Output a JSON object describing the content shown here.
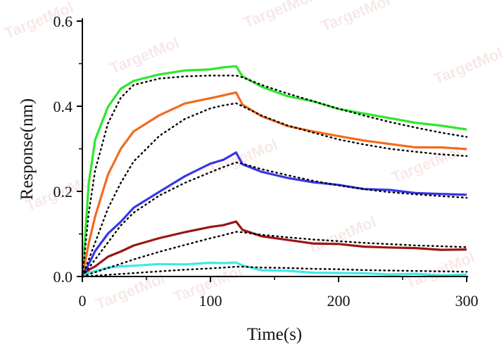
{
  "watermark_text": "TargetMol",
  "chart_data": {
    "type": "line",
    "title": "",
    "xlabel": "Time(s)",
    "ylabel": "Response(nm)",
    "xlim": [
      0,
      300
    ],
    "ylim": [
      0,
      0.6
    ],
    "x_ticks": [
      0,
      100,
      200,
      300
    ],
    "y_ticks": [
      0.0,
      0.2,
      0.4,
      0.6
    ],
    "x_tick_labels": [
      "0",
      "100",
      "200",
      "300"
    ],
    "y_tick_labels": [
      "0.0",
      "0.2",
      "0.4",
      "0.6"
    ],
    "grid": false,
    "legend": "none",
    "x": [
      0,
      5,
      10,
      20,
      30,
      40,
      60,
      80,
      100,
      110,
      120,
      125,
      140,
      160,
      180,
      200,
      220,
      240,
      260,
      280,
      300
    ],
    "series": [
      {
        "color": "#2ee62e",
        "values": [
          0.0,
          0.22,
          0.32,
          0.4,
          0.44,
          0.46,
          0.475,
          0.483,
          0.488,
          0.49,
          0.495,
          0.47,
          0.445,
          0.425,
          0.41,
          0.395,
          0.382,
          0.372,
          0.362,
          0.353,
          0.347
        ],
        "fit": [
          0.0,
          0.15,
          0.25,
          0.36,
          0.42,
          0.45,
          0.465,
          0.47,
          0.472,
          0.472,
          0.472,
          0.468,
          0.45,
          0.43,
          0.412,
          0.394,
          0.378,
          0.363,
          0.35,
          0.338,
          0.328
        ]
      },
      {
        "color": "#f26a1e",
        "values": [
          0.0,
          0.08,
          0.14,
          0.24,
          0.3,
          0.34,
          0.38,
          0.405,
          0.42,
          0.425,
          0.432,
          0.405,
          0.375,
          0.355,
          0.34,
          0.33,
          0.32,
          0.31,
          0.305,
          0.302,
          0.3
        ],
        "fit": [
          0.0,
          0.04,
          0.08,
          0.16,
          0.22,
          0.27,
          0.33,
          0.37,
          0.395,
          0.402,
          0.407,
          0.4,
          0.378,
          0.355,
          0.338,
          0.322,
          0.31,
          0.3,
          0.293,
          0.287,
          0.283
        ]
      },
      {
        "color": "#3535e8",
        "values": [
          0.0,
          0.03,
          0.06,
          0.1,
          0.13,
          0.16,
          0.2,
          0.235,
          0.265,
          0.275,
          0.29,
          0.265,
          0.245,
          0.232,
          0.222,
          0.214,
          0.207,
          0.202,
          0.197,
          0.194,
          0.191
        ],
        "fit": [
          0.0,
          0.02,
          0.04,
          0.08,
          0.12,
          0.15,
          0.19,
          0.22,
          0.245,
          0.257,
          0.268,
          0.265,
          0.252,
          0.238,
          0.225,
          0.214,
          0.205,
          0.198,
          0.193,
          0.189,
          0.185
        ]
      },
      {
        "color": "#9c1515",
        "values": [
          0.0,
          0.015,
          0.025,
          0.045,
          0.06,
          0.072,
          0.09,
          0.105,
          0.115,
          0.122,
          0.128,
          0.11,
          0.095,
          0.085,
          0.079,
          0.075,
          0.071,
          0.068,
          0.066,
          0.064,
          0.062
        ],
        "fit": [
          0.0,
          0.005,
          0.01,
          0.02,
          0.03,
          0.04,
          0.058,
          0.074,
          0.09,
          0.097,
          0.105,
          0.104,
          0.098,
          0.092,
          0.087,
          0.083,
          0.079,
          0.076,
          0.073,
          0.071,
          0.069
        ]
      },
      {
        "color": "#3fe8e8",
        "values": [
          0.0,
          0.008,
          0.014,
          0.02,
          0.024,
          0.026,
          0.028,
          0.03,
          0.031,
          0.032,
          0.033,
          0.025,
          0.016,
          0.012,
          0.01,
          0.008,
          0.007,
          0.006,
          0.005,
          0.004,
          0.004
        ],
        "fit": [
          0.0,
          0.001,
          0.002,
          0.004,
          0.006,
          0.008,
          0.012,
          0.016,
          0.019,
          0.021,
          0.023,
          0.023,
          0.021,
          0.02,
          0.018,
          0.017,
          0.015,
          0.014,
          0.013,
          0.012,
          0.011
        ]
      }
    ]
  }
}
